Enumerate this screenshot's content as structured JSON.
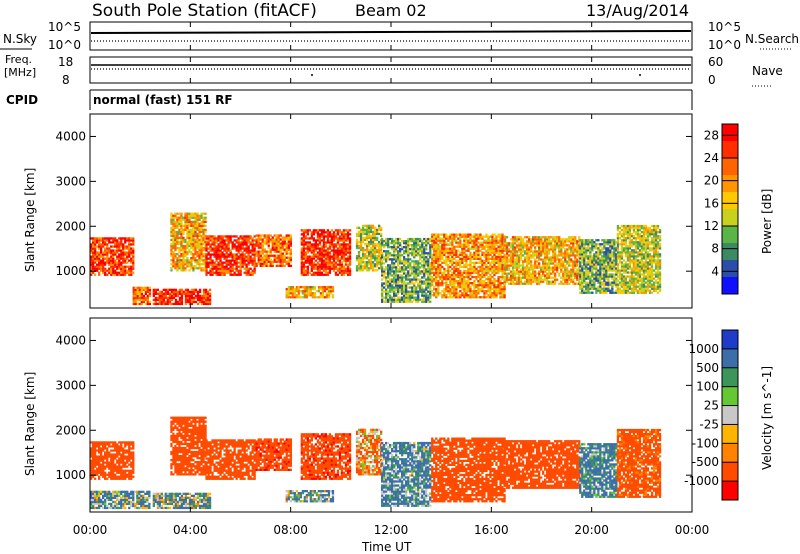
{
  "header": {
    "title": "South Pole Station (fitACF)",
    "beam": "Beam 02",
    "date": "13/Aug/2014"
  },
  "aux_panels": {
    "nsky_label": "N.Sky",
    "nsearch_label": "N.Search",
    "noise_ticks": [
      "10^5",
      "10^0"
    ],
    "freq_label_1": "Freq.",
    "freq_label_2": "[MHz]",
    "freq_ticks": [
      "18",
      "8"
    ],
    "nave_label": "Nave",
    "nave_ticks": [
      "60",
      "0"
    ],
    "cpid_label": "CPID",
    "cpid_value": "normal (fast) 151 RF"
  },
  "colors": {
    "power": [
      "#1010ff",
      "#2b4fa8",
      "#3c8a64",
      "#5ab548",
      "#c8d21e",
      "#ffc800",
      "#ff9600",
      "#ff6400",
      "#ff2d00",
      "#ff0000"
    ],
    "velocity": [
      "#ff0000",
      "#ff4b00",
      "#ff8200",
      "#ffb400",
      "#c8c8c8",
      "#64c832",
      "#3c965a",
      "#3c6eaa",
      "#1e3cc8"
    ]
  },
  "chart_data": [
    {
      "type": "heatmap",
      "panel": "power",
      "ylabel": "Slant Range [km]",
      "ylim": [
        180,
        4500
      ],
      "yticks": [
        "4000",
        "3000",
        "2000",
        "1000"
      ],
      "colorbar_label": "Power [dB]",
      "colorbar_ticks": [
        "28",
        "24",
        "20",
        "16",
        "12",
        "8",
        "4"
      ],
      "colorbar_range": [
        0,
        30
      ],
      "xlim_hours": [
        0,
        24
      ],
      "xlabel": "Time UT",
      "xticks": [
        "00:00",
        "04:00",
        "08:00",
        "12:00",
        "16:00",
        "20:00",
        "00:00"
      ],
      "echo_bands": [
        {
          "t": [
            0.0,
            1.7
          ],
          "range": [
            900,
            1750
          ],
          "value": 25
        },
        {
          "t": [
            1.7,
            2.4
          ],
          "range": [
            250,
            650
          ],
          "value": 22
        },
        {
          "t": [
            2.5,
            4.8
          ],
          "range": [
            250,
            600
          ],
          "value": 27
        },
        {
          "t": [
            3.2,
            4.6
          ],
          "range": [
            1000,
            2300
          ],
          "value": 18
        },
        {
          "t": [
            4.6,
            6.6
          ],
          "range": [
            900,
            1800
          ],
          "value": 26
        },
        {
          "t": [
            6.6,
            8.0
          ],
          "range": [
            1100,
            1800
          ],
          "value": 22
        },
        {
          "t": [
            7.8,
            9.7
          ],
          "range": [
            400,
            650
          ],
          "value": 18
        },
        {
          "t": [
            8.4,
            10.4
          ],
          "range": [
            900,
            1900
          ],
          "value": 26
        },
        {
          "t": [
            10.6,
            11.6
          ],
          "range": [
            1000,
            2000
          ],
          "value": 14
        },
        {
          "t": [
            11.6,
            13.6
          ],
          "range": [
            300,
            1700
          ],
          "value": 10
        },
        {
          "t": [
            13.6,
            16.5
          ],
          "range": [
            400,
            1800
          ],
          "value": 20
        },
        {
          "t": [
            16.5,
            19.5
          ],
          "range": [
            700,
            1750
          ],
          "value": 18
        },
        {
          "t": [
            19.5,
            21.0
          ],
          "range": [
            500,
            1700
          ],
          "value": 10
        },
        {
          "t": [
            21.0,
            22.7
          ],
          "range": [
            500,
            2000
          ],
          "value": 14
        }
      ]
    },
    {
      "type": "heatmap",
      "panel": "velocity",
      "ylabel": "Slant Range [km]",
      "ylim": [
        180,
        4500
      ],
      "yticks": [
        "4000",
        "3000",
        "2000",
        "1000"
      ],
      "colorbar_label": "Velocity [m s^-1]",
      "colorbar_ticks": [
        "1000",
        "500",
        "100",
        "25",
        "-25",
        "-100",
        "-500",
        "-1000"
      ],
      "xlim_hours": [
        0,
        24
      ],
      "xlabel": "Time UT",
      "xticks": [
        "00:00",
        "04:00",
        "08:00",
        "12:00",
        "16:00",
        "20:00",
        "00:00"
      ],
      "echo_bands": [
        {
          "t": [
            0.0,
            1.7
          ],
          "range": [
            900,
            1750
          ],
          "value": -300
        },
        {
          "t": [
            0.0,
            2.4
          ],
          "range": [
            250,
            650
          ],
          "value": 80
        },
        {
          "t": [
            2.5,
            4.8
          ],
          "range": [
            250,
            600
          ],
          "value": 80
        },
        {
          "t": [
            3.2,
            4.6
          ],
          "range": [
            1000,
            2300
          ],
          "value": -300
        },
        {
          "t": [
            4.6,
            6.6
          ],
          "range": [
            900,
            1800
          ],
          "value": -300
        },
        {
          "t": [
            6.6,
            8.0
          ],
          "range": [
            1100,
            1800
          ],
          "value": -400
        },
        {
          "t": [
            7.8,
            9.7
          ],
          "range": [
            400,
            650
          ],
          "value": 80
        },
        {
          "t": [
            8.4,
            10.4
          ],
          "range": [
            900,
            1900
          ],
          "value": -400
        },
        {
          "t": [
            10.6,
            11.6
          ],
          "range": [
            1000,
            2000
          ],
          "value": -100
        },
        {
          "t": [
            11.6,
            13.6
          ],
          "range": [
            300,
            1700
          ],
          "value": 120
        },
        {
          "t": [
            13.6,
            16.5
          ],
          "range": [
            400,
            1800
          ],
          "value": -300
        },
        {
          "t": [
            16.5,
            19.5
          ],
          "range": [
            700,
            1750
          ],
          "value": -300
        },
        {
          "t": [
            19.5,
            21.0
          ],
          "range": [
            500,
            1700
          ],
          "value": 150
        },
        {
          "t": [
            21.0,
            22.7
          ],
          "range": [
            500,
            2000
          ],
          "value": -200
        }
      ]
    }
  ]
}
